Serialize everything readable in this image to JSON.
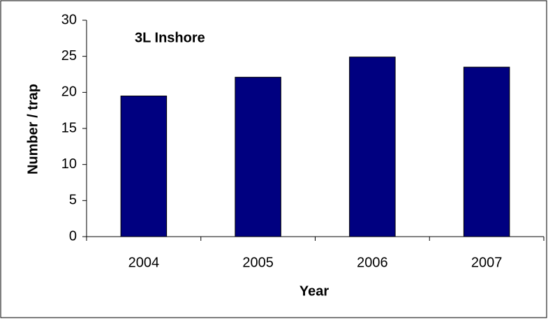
{
  "chart_data": {
    "type": "bar",
    "title": "3L Inshore",
    "x_label": "Year",
    "y_label": "Number / trap",
    "categories": [
      "2004",
      "2005",
      "2006",
      "2007"
    ],
    "values": [
      19.5,
      22.1,
      24.9,
      23.5
    ],
    "color": "#000080",
    "ylim": [
      0,
      30
    ],
    "yticks": [
      0,
      5,
      10,
      15,
      20,
      25,
      30
    ],
    "grid": false
  }
}
